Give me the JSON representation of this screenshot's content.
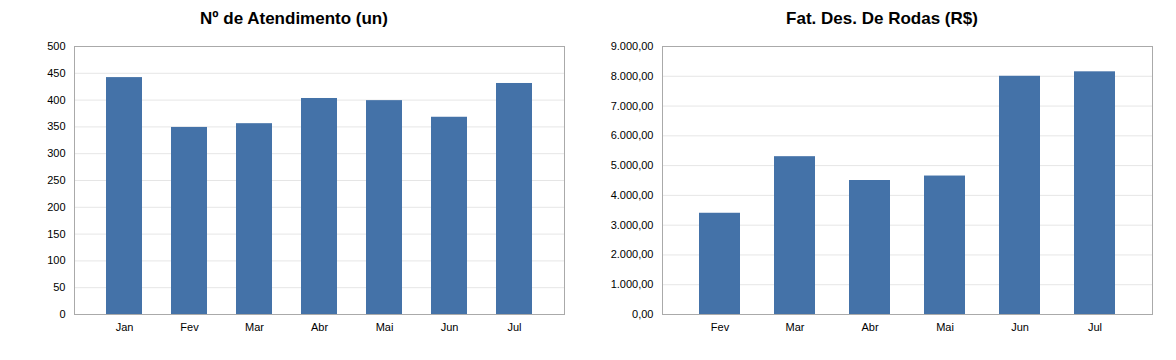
{
  "chart_data": [
    {
      "type": "bar",
      "title": "Nº de Atendimento (un)",
      "categories": [
        "Jan",
        "Fev",
        "Mar",
        "Abr",
        "Mai",
        "Jun",
        "Jul"
      ],
      "values": [
        442,
        349,
        356,
        403,
        399,
        368,
        431
      ],
      "color": "#4472a8",
      "ylim": [
        0,
        500
      ],
      "yticks": [
        0,
        50,
        100,
        150,
        200,
        250,
        300,
        350,
        400,
        450,
        500
      ],
      "grid": true
    },
    {
      "type": "bar",
      "title": "Fat. Des. De Rodas (R$)",
      "categories": [
        "Fev",
        "Mar",
        "Abr",
        "Mai",
        "Jun",
        "Jul"
      ],
      "values": [
        3400,
        5300,
        4500,
        4650,
        8000,
        8150
      ],
      "color": "#4472a8",
      "ylim": [
        0,
        9000
      ],
      "yticks": [
        {
          "value": 0,
          "label": "0,00"
        },
        {
          "value": 1000,
          "label": "1.000,00"
        },
        {
          "value": 2000,
          "label": "2.000,00"
        },
        {
          "value": 3000,
          "label": "3.000,00"
        },
        {
          "value": 4000,
          "label": "4.000,00"
        },
        {
          "value": 5000,
          "label": "5.000,00"
        },
        {
          "value": 6000,
          "label": "6.000,00"
        },
        {
          "value": 7000,
          "label": "7.000,00"
        },
        {
          "value": 8000,
          "label": "8.000,00"
        },
        {
          "value": 9000,
          "label": "9.000,00"
        }
      ],
      "grid": true
    }
  ]
}
